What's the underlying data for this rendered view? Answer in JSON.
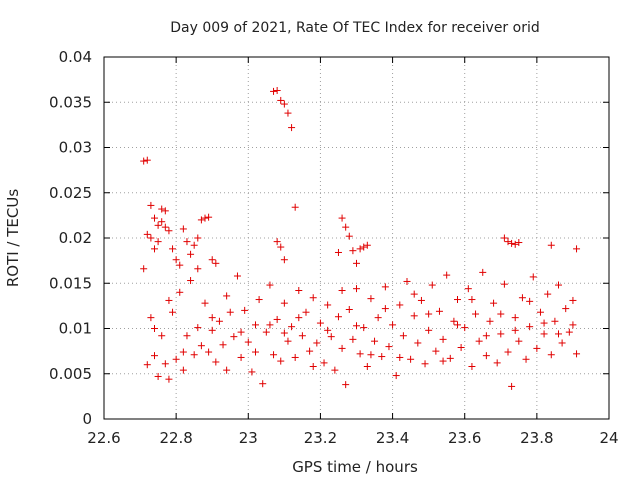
{
  "chart_data": {
    "type": "scatter",
    "title": "Day 009 of 2021, Rate Of TEC Index for receiver orid",
    "xlabel": "GPS time / hours",
    "ylabel": "ROTI / TECUs",
    "xlim": [
      22.6,
      24.0
    ],
    "ylim": [
      0,
      0.04
    ],
    "x_ticks": [
      "22.6",
      "22.8",
      "23",
      "23.2",
      "23.4",
      "23.6",
      "23.8",
      "24"
    ],
    "y_ticks": [
      "0",
      "0.005",
      "0.01",
      "0.015",
      "0.02",
      "0.025",
      "0.03",
      "0.035",
      "0.04"
    ],
    "grid": true,
    "marker": "+",
    "series_color": "#e00000",
    "series": [
      {
        "name": "ROTI",
        "points": [
          [
            22.71,
            0.0285
          ],
          [
            22.72,
            0.0286
          ],
          [
            22.73,
            0.0236
          ],
          [
            22.74,
            0.0222
          ],
          [
            22.75,
            0.0214
          ],
          [
            22.76,
            0.0232
          ],
          [
            22.77,
            0.023
          ],
          [
            22.71,
            0.0166
          ],
          [
            22.72,
            0.0204
          ],
          [
            22.73,
            0.02
          ],
          [
            22.74,
            0.0188
          ],
          [
            22.75,
            0.0196
          ],
          [
            22.76,
            0.0218
          ],
          [
            22.77,
            0.0212
          ],
          [
            22.78,
            0.0208
          ],
          [
            22.79,
            0.0188
          ],
          [
            22.8,
            0.0176
          ],
          [
            22.81,
            0.017
          ],
          [
            22.82,
            0.021
          ],
          [
            22.83,
            0.0196
          ],
          [
            22.84,
            0.0182
          ],
          [
            22.85,
            0.0192
          ],
          [
            22.86,
            0.02
          ],
          [
            22.87,
            0.022
          ],
          [
            22.88,
            0.0222
          ],
          [
            22.89,
            0.0223
          ],
          [
            22.9,
            0.0176
          ],
          [
            22.91,
            0.0172
          ],
          [
            23.07,
            0.0362
          ],
          [
            23.08,
            0.0363
          ],
          [
            23.09,
            0.0352
          ],
          [
            23.1,
            0.0348
          ],
          [
            23.11,
            0.0338
          ],
          [
            23.12,
            0.0322
          ],
          [
            23.13,
            0.0234
          ],
          [
            23.08,
            0.0196
          ],
          [
            23.09,
            0.019
          ],
          [
            23.1,
            0.0176
          ],
          [
            23.26,
            0.0222
          ],
          [
            23.27,
            0.0212
          ],
          [
            23.28,
            0.0202
          ],
          [
            23.25,
            0.0184
          ],
          [
            23.29,
            0.0186
          ],
          [
            23.3,
            0.0172
          ],
          [
            23.31,
            0.0188
          ],
          [
            23.32,
            0.019
          ],
          [
            23.33,
            0.0192
          ],
          [
            23.71,
            0.02
          ],
          [
            23.72,
            0.0196
          ],
          [
            23.73,
            0.0194
          ],
          [
            23.74,
            0.0193
          ],
          [
            23.75,
            0.0195
          ],
          [
            23.84,
            0.0192
          ],
          [
            23.91,
            0.0188
          ],
          [
            22.72,
            0.006
          ],
          [
            22.73,
            0.0112
          ],
          [
            22.74,
            0.007
          ],
          [
            22.75,
            0.0047
          ],
          [
            22.76,
            0.0092
          ],
          [
            22.77,
            0.0061
          ],
          [
            22.78,
            0.0044
          ],
          [
            22.79,
            0.0118
          ],
          [
            22.8,
            0.0066
          ],
          [
            22.81,
            0.014
          ],
          [
            22.82,
            0.0074
          ],
          [
            22.83,
            0.0092
          ],
          [
            22.84,
            0.0153
          ],
          [
            22.85,
            0.0071
          ],
          [
            22.86,
            0.0101
          ],
          [
            22.87,
            0.0081
          ],
          [
            22.88,
            0.0128
          ],
          [
            22.89,
            0.0074
          ],
          [
            22.9,
            0.0098
          ],
          [
            22.91,
            0.0063
          ],
          [
            22.92,
            0.0108
          ],
          [
            22.93,
            0.0082
          ],
          [
            22.94,
            0.0054
          ],
          [
            22.95,
            0.0118
          ],
          [
            22.96,
            0.0091
          ],
          [
            22.97,
            0.0158
          ],
          [
            22.98,
            0.0068
          ],
          [
            22.99,
            0.012
          ],
          [
            23.0,
            0.0085
          ],
          [
            23.01,
            0.0052
          ],
          [
            23.02,
            0.0104
          ],
          [
            23.03,
            0.0132
          ],
          [
            23.04,
            0.0039
          ],
          [
            23.05,
            0.0096
          ],
          [
            23.06,
            0.0148
          ],
          [
            23.07,
            0.0071
          ],
          [
            23.08,
            0.011
          ],
          [
            23.09,
            0.0064
          ],
          [
            23.1,
            0.0128
          ],
          [
            23.11,
            0.0086
          ],
          [
            23.12,
            0.0102
          ],
          [
            23.13,
            0.0068
          ],
          [
            23.14,
            0.0142
          ],
          [
            23.15,
            0.0092
          ],
          [
            23.16,
            0.0118
          ],
          [
            23.17,
            0.0075
          ],
          [
            23.18,
            0.0134
          ],
          [
            23.19,
            0.0084
          ],
          [
            23.2,
            0.0106
          ],
          [
            23.21,
            0.0062
          ],
          [
            23.22,
            0.0126
          ],
          [
            23.23,
            0.0091
          ],
          [
            23.24,
            0.0054
          ],
          [
            23.25,
            0.0113
          ],
          [
            23.26,
            0.0078
          ],
          [
            23.27,
            0.0038
          ],
          [
            23.28,
            0.0121
          ],
          [
            23.29,
            0.0088
          ],
          [
            23.3,
            0.0144
          ],
          [
            23.31,
            0.0072
          ],
          [
            23.32,
            0.0101
          ],
          [
            23.33,
            0.0058
          ],
          [
            23.34,
            0.0133
          ],
          [
            23.35,
            0.0086
          ],
          [
            23.36,
            0.0112
          ],
          [
            23.37,
            0.0069
          ],
          [
            23.38,
            0.0146
          ],
          [
            23.39,
            0.008
          ],
          [
            23.4,
            0.0104
          ],
          [
            23.41,
            0.0048
          ],
          [
            23.42,
            0.0126
          ],
          [
            23.43,
            0.0092
          ],
          [
            23.44,
            0.0152
          ],
          [
            23.45,
            0.0066
          ],
          [
            23.46,
            0.0114
          ],
          [
            23.47,
            0.0084
          ],
          [
            23.48,
            0.0131
          ],
          [
            23.49,
            0.0061
          ],
          [
            23.5,
            0.0098
          ],
          [
            23.51,
            0.0148
          ],
          [
            23.52,
            0.0075
          ],
          [
            23.53,
            0.0119
          ],
          [
            23.54,
            0.0088
          ],
          [
            23.55,
            0.0159
          ],
          [
            23.56,
            0.0067
          ],
          [
            23.57,
            0.0108
          ],
          [
            23.58,
            0.0132
          ],
          [
            23.59,
            0.0079
          ],
          [
            23.6,
            0.0101
          ],
          [
            23.61,
            0.0144
          ],
          [
            23.62,
            0.0058
          ],
          [
            23.63,
            0.0116
          ],
          [
            23.64,
            0.0086
          ],
          [
            23.65,
            0.0162
          ],
          [
            23.66,
            0.007
          ],
          [
            23.67,
            0.0108
          ],
          [
            23.68,
            0.0128
          ],
          [
            23.69,
            0.0062
          ],
          [
            23.7,
            0.0094
          ],
          [
            23.71,
            0.0149
          ],
          [
            23.72,
            0.0074
          ],
          [
            23.73,
            0.0036
          ],
          [
            23.74,
            0.0112
          ],
          [
            23.75,
            0.0086
          ],
          [
            23.76,
            0.0134
          ],
          [
            23.77,
            0.0066
          ],
          [
            23.78,
            0.0102
          ],
          [
            23.79,
            0.0157
          ],
          [
            23.8,
            0.0078
          ],
          [
            23.81,
            0.0118
          ],
          [
            23.82,
            0.0094
          ],
          [
            23.83,
            0.0138
          ],
          [
            23.84,
            0.0071
          ],
          [
            23.85,
            0.0108
          ],
          [
            23.86,
            0.0148
          ],
          [
            23.87,
            0.0084
          ],
          [
            23.88,
            0.0122
          ],
          [
            23.89,
            0.0096
          ],
          [
            23.9,
            0.0131
          ],
          [
            23.91,
            0.0072
          ],
          [
            22.74,
            0.01
          ],
          [
            22.78,
            0.0131
          ],
          [
            22.82,
            0.0054
          ],
          [
            22.86,
            0.0166
          ],
          [
            22.9,
            0.0112
          ],
          [
            22.94,
            0.0136
          ],
          [
            22.98,
            0.0096
          ],
          [
            23.02,
            0.0074
          ],
          [
            23.06,
            0.0104
          ],
          [
            23.1,
            0.0095
          ],
          [
            23.14,
            0.0112
          ],
          [
            23.18,
            0.0058
          ],
          [
            23.22,
            0.0098
          ],
          [
            23.26,
            0.0142
          ],
          [
            23.3,
            0.0103
          ],
          [
            23.34,
            0.0071
          ],
          [
            23.38,
            0.0122
          ],
          [
            23.42,
            0.0068
          ],
          [
            23.46,
            0.0138
          ],
          [
            23.5,
            0.0116
          ],
          [
            23.54,
            0.0064
          ],
          [
            23.58,
            0.0104
          ],
          [
            23.62,
            0.0132
          ],
          [
            23.66,
            0.0092
          ],
          [
            23.7,
            0.0116
          ],
          [
            23.74,
            0.0098
          ],
          [
            23.78,
            0.013
          ],
          [
            23.82,
            0.0106
          ],
          [
            23.86,
            0.0094
          ],
          [
            23.9,
            0.0104
          ]
        ]
      }
    ]
  }
}
